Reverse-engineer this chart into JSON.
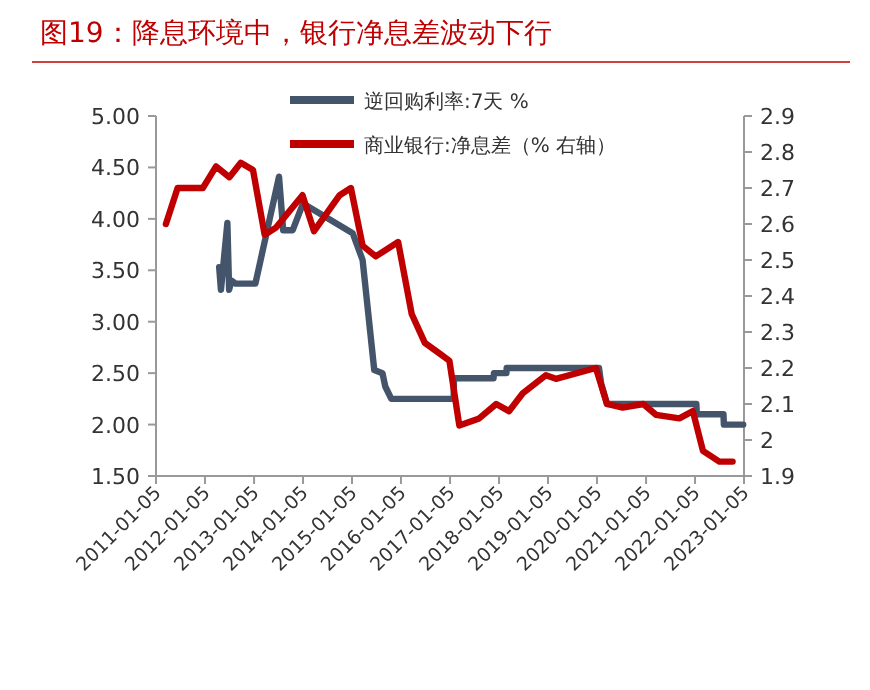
{
  "chart_data": {
    "type": "line",
    "title": "图19：降息环境中，银行净息差波动下行",
    "legend": "top",
    "xlim": [
      "2011-01-05",
      "2023-01-05"
    ],
    "xticks": [
      "2011-01-05",
      "2012-01-05",
      "2013-01-05",
      "2014-01-05",
      "2015-01-05",
      "2016-01-05",
      "2017-01-05",
      "2018-01-05",
      "2019-01-05",
      "2020-01-05",
      "2021-01-05",
      "2022-01-05",
      "2023-01-05"
    ],
    "ylim": [
      1.5,
      5
    ],
    "yticks": [
      {
        "value": 1.5,
        "label": "1.50"
      },
      {
        "value": 2,
        "label": "2.00"
      },
      {
        "value": 2.5,
        "label": "2.50"
      },
      {
        "value": 3,
        "label": "3.00"
      },
      {
        "value": 3.5,
        "label": "3.50"
      },
      {
        "value": 4,
        "label": "4.00"
      },
      {
        "value": 4.5,
        "label": "4.50"
      },
      {
        "value": 5,
        "label": "5.00"
      }
    ],
    "y2lim": [
      1.9,
      2.9
    ],
    "y2ticks": [
      1.9,
      2,
      2.1,
      2.2,
      2.3,
      2.4,
      2.5,
      2.6,
      2.7,
      2.8,
      2.9
    ],
    "series": [
      {
        "name": "逆回购利率:7天 %",
        "color": "#44546a",
        "x": [
          "2012-04-20",
          "2012-05-03",
          "2012-06-20",
          "2012-07-03",
          "2012-07-20",
          "2012-08-20",
          "2013-01-15",
          "2013-07-10",
          "2013-08-10",
          "2013-10-20",
          "2014-01-05",
          "2015-01-10",
          "2015-03-25",
          "2015-06-20",
          "2015-08-20",
          "2015-09-10",
          "2015-10-25",
          "2017-02-01",
          "2017-02-03",
          "2017-11-25",
          "2017-11-28",
          "2018-03-01",
          "2018-03-03",
          "2020-01-20",
          "2020-02-05",
          "2020-03-20",
          "2022-01-15",
          "2022-01-18",
          "2022-08-05",
          "2022-08-08",
          "2022-12-30"
        ],
        "values": [
          3.53,
          3.31,
          3.96,
          3.31,
          3.4,
          3.37,
          3.37,
          4.41,
          3.89,
          3.89,
          4.15,
          3.86,
          3.6,
          2.53,
          2.5,
          2.37,
          2.25,
          2.25,
          2.45,
          2.45,
          2.5,
          2.5,
          2.55,
          2.55,
          2.4,
          2.2,
          2.2,
          2.1,
          2.1,
          2.0,
          2.0
        ]
      },
      {
        "name": "商业银行:净息差（% 右轴）",
        "color": "#c00000",
        "axis": "y2",
        "x": [
          "2011-03-20",
          "2011-06-15",
          "2011-12-20",
          "2012-03-28",
          "2012-07-05",
          "2012-09-28",
          "2012-12-28",
          "2013-03-25",
          "2013-06-18",
          "2014-01-01",
          "2014-03-28",
          "2014-10-05",
          "2014-12-28",
          "2015-03-25",
          "2015-07-01",
          "2015-12-15",
          "2016-03-25",
          "2016-07-01",
          "2016-10-20",
          "2016-12-31",
          "2017-03-15",
          "2017-08-10",
          "2017-12-15",
          "2018-03-20",
          "2018-07-01",
          "2018-12-20",
          "2019-03-05",
          "2019-12-28",
          "2020-03-20",
          "2020-07-15",
          "2020-12-15",
          "2021-03-20",
          "2021-09-10",
          "2021-12-20",
          "2022-03-05",
          "2022-07-05",
          "2022-10-12"
        ],
        "values": [
          2.6,
          2.7,
          2.7,
          2.76,
          2.73,
          2.77,
          2.75,
          2.57,
          2.59,
          2.68,
          2.58,
          2.68,
          2.7,
          2.54,
          2.51,
          2.55,
          2.35,
          2.27,
          2.24,
          2.22,
          2.04,
          2.06,
          2.1,
          2.08,
          2.13,
          2.18,
          2.17,
          2.2,
          2.1,
          2.09,
          2.1,
          2.07,
          2.06,
          2.08,
          1.97,
          1.94,
          1.94
        ]
      }
    ]
  }
}
